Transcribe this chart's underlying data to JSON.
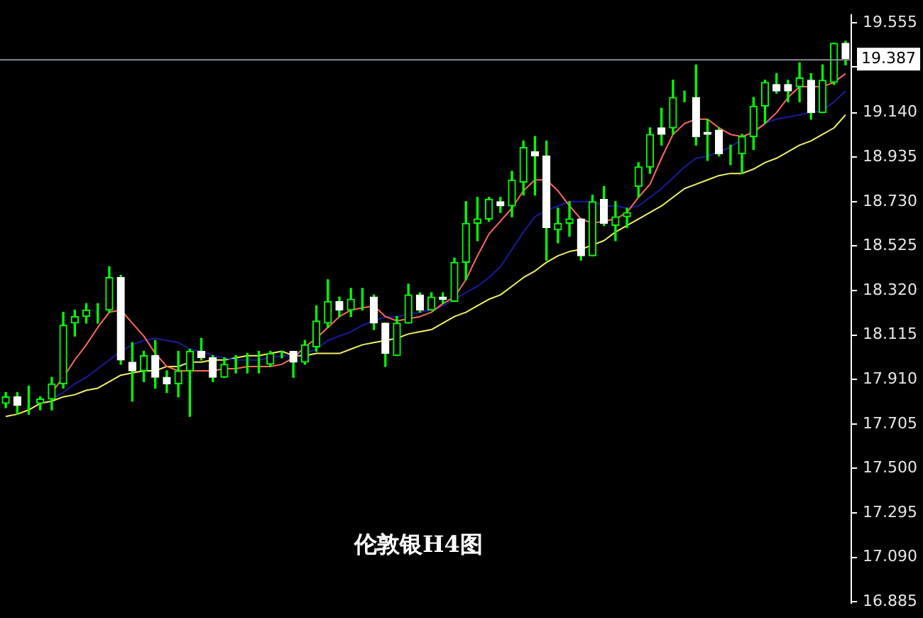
{
  "chart_data": {
    "type": "candlestick",
    "title": "伦敦银H4图",
    "color": "#00ff00",
    "tick_labels": "y",
    "categories": [
      null,
      null,
      null,
      null,
      null,
      null,
      null,
      null,
      null,
      null,
      null,
      null,
      null,
      null,
      null,
      null,
      null,
      null,
      null,
      null,
      null,
      null,
      null,
      null,
      null,
      null,
      null,
      null,
      null,
      null,
      null,
      null,
      null,
      null,
      null,
      null,
      null,
      null,
      null,
      null,
      null,
      null,
      null,
      null,
      null,
      null,
      null,
      null,
      null,
      null,
      null,
      null,
      null,
      null,
      null,
      null,
      null,
      null,
      null,
      null,
      null,
      null,
      null,
      null,
      null,
      null,
      null,
      null,
      null,
      null,
      null,
      null,
      null,
      null
    ],
    "ohlc": [
      [
        17.8,
        17.85,
        17.78,
        17.83
      ],
      [
        17.83,
        17.85,
        17.75,
        17.79
      ],
      [
        17.8,
        17.88,
        17.75,
        17.8
      ],
      [
        17.8,
        17.83,
        17.77,
        17.82
      ],
      [
        17.82,
        17.92,
        17.77,
        17.89
      ],
      [
        17.89,
        18.22,
        17.87,
        18.16
      ],
      [
        18.17,
        18.23,
        18.11,
        18.2
      ],
      [
        18.2,
        18.26,
        18.17,
        18.23
      ],
      [
        18.22,
        18.26,
        18.17,
        18.22
      ],
      [
        18.23,
        18.43,
        18.22,
        18.38
      ],
      [
        18.38,
        18.39,
        17.98,
        18.0
      ],
      [
        17.99,
        18.08,
        17.81,
        17.95
      ],
      [
        17.95,
        18.04,
        17.9,
        18.02
      ],
      [
        18.02,
        18.09,
        17.87,
        17.92
      ],
      [
        17.92,
        17.95,
        17.85,
        17.89
      ],
      [
        17.89,
        18.04,
        17.83,
        17.95
      ],
      [
        17.95,
        18.05,
        17.74,
        18.04
      ],
      [
        18.04,
        18.1,
        18.0,
        18.01
      ],
      [
        18.01,
        18.02,
        17.9,
        17.92
      ],
      [
        17.92,
        18.01,
        17.92,
        17.98
      ],
      [
        17.98,
        18.02,
        17.94,
        17.98
      ],
      [
        17.97,
        18.03,
        17.94,
        17.97
      ],
      [
        17.97,
        18.04,
        17.94,
        17.97
      ],
      [
        17.98,
        18.04,
        17.97,
        18.03
      ],
      [
        18.03,
        18.04,
        18.01,
        18.03
      ],
      [
        18.04,
        18.04,
        17.92,
        17.99
      ],
      [
        17.99,
        18.09,
        17.98,
        18.07
      ],
      [
        18.06,
        18.25,
        18.04,
        18.18
      ],
      [
        18.17,
        18.37,
        18.15,
        18.27
      ],
      [
        18.27,
        18.29,
        18.2,
        18.23
      ],
      [
        18.23,
        18.33,
        18.2,
        18.28
      ],
      [
        18.28,
        18.33,
        18.23,
        18.28
      ],
      [
        18.29,
        18.3,
        18.14,
        18.17
      ],
      [
        18.17,
        18.17,
        17.97,
        18.03
      ],
      [
        18.02,
        18.2,
        18.02,
        18.17
      ],
      [
        18.17,
        18.35,
        18.17,
        18.3
      ],
      [
        18.3,
        18.31,
        18.22,
        18.23
      ],
      [
        18.23,
        18.31,
        18.23,
        18.29
      ],
      [
        18.29,
        18.31,
        18.26,
        18.28
      ],
      [
        18.27,
        18.47,
        18.27,
        18.45
      ],
      [
        18.45,
        18.73,
        18.37,
        18.63
      ],
      [
        18.63,
        18.75,
        18.55,
        18.65
      ],
      [
        18.65,
        18.75,
        18.64,
        18.74
      ],
      [
        18.73,
        18.75,
        18.68,
        18.71
      ],
      [
        18.71,
        18.87,
        18.66,
        18.83
      ],
      [
        18.82,
        19.01,
        18.76,
        18.98
      ],
      [
        18.96,
        19.03,
        18.76,
        18.94
      ],
      [
        18.94,
        19.01,
        18.46,
        18.61
      ],
      [
        18.6,
        18.7,
        18.54,
        18.63
      ],
      [
        18.63,
        18.73,
        18.57,
        18.65
      ],
      [
        18.65,
        18.65,
        18.46,
        18.48
      ],
      [
        18.48,
        18.76,
        18.48,
        18.73
      ],
      [
        18.74,
        18.8,
        18.62,
        18.63
      ],
      [
        18.62,
        18.73,
        18.55,
        18.66
      ],
      [
        18.66,
        18.7,
        18.61,
        18.68
      ],
      [
        18.8,
        18.91,
        18.75,
        18.89
      ],
      [
        18.89,
        19.07,
        18.86,
        19.04
      ],
      [
        19.07,
        19.16,
        18.99,
        19.04
      ],
      [
        19.07,
        19.29,
        19.04,
        19.21
      ],
      [
        19.21,
        19.24,
        19.19,
        19.21
      ],
      [
        19.21,
        19.36,
        18.99,
        19.03
      ],
      [
        19.05,
        19.11,
        18.92,
        19.04
      ],
      [
        19.06,
        19.07,
        18.94,
        18.95
      ],
      [
        18.96,
        18.99,
        18.9,
        18.96
      ],
      [
        18.95,
        19.04,
        18.86,
        19.03
      ],
      [
        19.03,
        19.21,
        18.97,
        19.17
      ],
      [
        19.17,
        19.29,
        19.09,
        19.28
      ],
      [
        19.27,
        19.32,
        19.23,
        19.24
      ],
      [
        19.27,
        19.29,
        19.19,
        19.24
      ],
      [
        19.26,
        19.37,
        19.19,
        19.3
      ],
      [
        19.29,
        19.32,
        19.11,
        19.14
      ],
      [
        19.14,
        19.36,
        19.14,
        19.29
      ],
      [
        19.28,
        19.46,
        19.27,
        19.46
      ],
      [
        19.46,
        19.47,
        19.36,
        19.39
      ]
    ],
    "series": [
      {
        "type": "line",
        "color": "#ff6a5a",
        "values": [
          null,
          null,
          null,
          null,
          17.85,
          17.92,
          18.0,
          18.07,
          18.15,
          18.22,
          18.23,
          18.17,
          18.11,
          18.03,
          17.97,
          17.95,
          17.95,
          17.95,
          17.95,
          17.96,
          17.96,
          17.97,
          17.97,
          17.97,
          17.98,
          18.01,
          18.06,
          18.1,
          18.15,
          18.2,
          18.23,
          18.24,
          18.25,
          18.2,
          18.18,
          18.19,
          18.2,
          18.22,
          18.26,
          18.29,
          18.37,
          18.48,
          18.58,
          18.64,
          18.7,
          18.78,
          18.83,
          18.83,
          18.78,
          18.71,
          18.65,
          18.63,
          18.64,
          18.65,
          18.68,
          18.75,
          18.81,
          18.93,
          19.04,
          19.09,
          19.11,
          19.11,
          19.07,
          19.04,
          19.03,
          19.05,
          19.09,
          19.14,
          19.21,
          19.26,
          19.26,
          19.26,
          19.28,
          19.32
        ]
      },
      {
        "type": "line",
        "color": "#1a1aa0",
        "values": [
          null,
          null,
          null,
          null,
          17.82,
          17.85,
          17.89,
          17.92,
          17.96,
          18.0,
          18.04,
          18.07,
          18.09,
          18.1,
          18.09,
          18.08,
          18.05,
          18.04,
          18.02,
          18.01,
          18.0,
          18.0,
          18.0,
          18.01,
          18.02,
          18.02,
          18.03,
          18.05,
          18.09,
          18.11,
          18.13,
          18.16,
          18.18,
          18.2,
          18.2,
          18.21,
          18.22,
          18.23,
          18.25,
          18.28,
          18.31,
          18.34,
          18.38,
          18.43,
          18.51,
          18.59,
          18.66,
          18.69,
          18.71,
          18.73,
          18.73,
          18.73,
          18.71,
          18.71,
          18.7,
          18.71,
          18.75,
          18.79,
          18.84,
          18.89,
          18.93,
          18.94,
          18.96,
          18.98,
          19.02,
          19.06,
          19.09,
          19.11,
          19.12,
          19.13,
          19.14,
          19.15,
          19.19,
          19.24
        ]
      },
      {
        "type": "line",
        "color": "#f0f060",
        "values": [
          17.74,
          17.75,
          17.77,
          17.8,
          17.81,
          17.83,
          17.84,
          17.86,
          17.87,
          17.9,
          17.93,
          17.94,
          17.95,
          17.95,
          17.97,
          17.97,
          17.99,
          17.99,
          18.0,
          18.0,
          18.01,
          18.02,
          18.02,
          18.03,
          18.04,
          18.02,
          18.02,
          18.03,
          18.03,
          18.03,
          18.05,
          18.07,
          18.08,
          18.09,
          18.1,
          18.12,
          18.13,
          18.14,
          18.17,
          18.2,
          18.22,
          18.25,
          18.28,
          18.3,
          18.34,
          18.38,
          18.41,
          18.45,
          18.48,
          18.5,
          18.51,
          18.53,
          18.55,
          18.59,
          18.62,
          18.65,
          18.68,
          18.71,
          18.75,
          18.79,
          18.81,
          18.83,
          18.85,
          18.86,
          18.86,
          18.88,
          18.91,
          18.93,
          18.96,
          18.99,
          19.01,
          19.04,
          19.07,
          19.13
        ]
      }
    ],
    "ylim": [
      16.88,
      19.59
    ],
    "yticks": [
      19.555,
      {
        "value": 19.35,
        "label": null
      },
      {
        "value": 19.14,
        "label": "19.140"
      },
      18.935,
      {
        "value": 18.73,
        "label": "18.730"
      },
      18.525,
      {
        "value": 18.32,
        "label": "18.320"
      },
      18.115,
      {
        "value": 17.91,
        "label": "17.910"
      },
      17.705,
      {
        "value": 17.5,
        "label": "17.500"
      },
      17.295,
      {
        "value": 17.09,
        "label": "17.090"
      },
      16.885
    ],
    "colors": [
      "#00ff00",
      "#ffffff",
      "#00ff00",
      "#00ff00",
      "#00ff00",
      "#00ff00",
      "#00ff00",
      "#00ff00",
      "#00ff00",
      "#00ff00",
      "#ffffff",
      "#ffffff",
      "#00ff00",
      "#ffffff",
      "#ffffff",
      "#00ff00",
      "#00ff00",
      "#ffffff",
      "#ffffff",
      "#00ff00",
      "#00ff00",
      "#00ff00",
      "#00ff00",
      "#00ff00",
      "#00ff00",
      "#ffffff",
      "#00ff00",
      "#00ff00",
      "#00ff00",
      "#ffffff",
      "#00ff00",
      "#00ff00",
      "#ffffff",
      "#ffffff",
      "#00ff00",
      "#00ff00",
      "#ffffff",
      "#00ff00",
      "#ffffff",
      "#00ff00",
      "#00ff00",
      "#00ff00",
      "#00ff00",
      "#ffffff",
      "#00ff00",
      "#00ff00",
      "#ffffff",
      "#ffffff",
      "#00ff00",
      "#00ff00",
      "#ffffff",
      "#00ff00",
      "#ffffff",
      "#00ff00",
      "#00ff00",
      "#00ff00",
      "#00ff00",
      "#ffffff",
      "#00ff00",
      "#00ff00",
      "#ffffff",
      "#ffffff",
      "#ffffff",
      "#00ff00",
      "#00ff00",
      "#00ff00",
      "#00ff00",
      "#ffffff",
      "#ffffff",
      "#00ff00",
      "#ffffff",
      "#00ff00",
      "#00ff00",
      "#ffffff"
    ],
    "ref_lines": [
      {
        "axis": "y",
        "value": 19.387,
        "label": "19.387",
        "color": "#8a8f9a"
      }
    ]
  }
}
